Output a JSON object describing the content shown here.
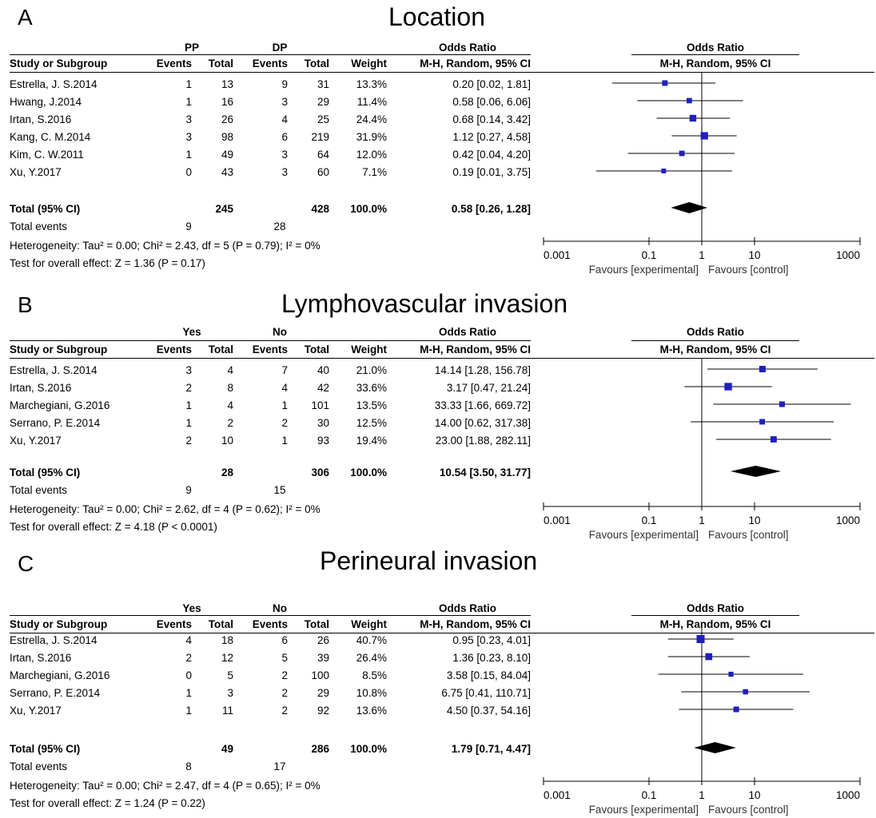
{
  "chart_data": [
    {
      "type": "forest",
      "panel_letter": "A",
      "title": "Location",
      "group1_label": "PP",
      "group2_label": "DP",
      "columns": {
        "study": "Study or Subgroup",
        "events": "Events",
        "total": "Total",
        "weight": "Weight",
        "or_head1": "Odds Ratio",
        "or_head2": "M-H, Random, 95% CI"
      },
      "studies": [
        {
          "name": "Estrella, J. S.2014",
          "e1": "1",
          "n1": "13",
          "e2": "9",
          "n2": "31",
          "weight": "13.3%",
          "ci_text": "0.20 [0.02, 1.81]",
          "or": 0.2,
          "lo": 0.02,
          "hi": 1.81,
          "w": 13.3
        },
        {
          "name": "Hwang, J.2014",
          "e1": "1",
          "n1": "16",
          "e2": "3",
          "n2": "29",
          "weight": "11.4%",
          "ci_text": "0.58 [0.06, 6.06]",
          "or": 0.58,
          "lo": 0.06,
          "hi": 6.06,
          "w": 11.4
        },
        {
          "name": "Irtan, S.2016",
          "e1": "3",
          "n1": "26",
          "e2": "4",
          "n2": "25",
          "weight": "24.4%",
          "ci_text": "0.68 [0.14, 3.42]",
          "or": 0.68,
          "lo": 0.14,
          "hi": 3.42,
          "w": 24.4
        },
        {
          "name": "Kang, C. M.2014",
          "e1": "3",
          "n1": "98",
          "e2": "6",
          "n2": "219",
          "weight": "31.9%",
          "ci_text": "1.12 [0.27, 4.58]",
          "or": 1.12,
          "lo": 0.27,
          "hi": 4.58,
          "w": 31.9
        },
        {
          "name": "Kim, C. W.2011",
          "e1": "1",
          "n1": "49",
          "e2": "3",
          "n2": "64",
          "weight": "12.0%",
          "ci_text": "0.42 [0.04, 4.20]",
          "or": 0.42,
          "lo": 0.04,
          "hi": 4.2,
          "w": 12.0
        },
        {
          "name": "Xu, Y.2017",
          "e1": "0",
          "n1": "43",
          "e2": "3",
          "n2": "60",
          "weight": "7.1%",
          "ci_text": "0.19 [0.01, 3.75]",
          "or": 0.19,
          "lo": 0.01,
          "hi": 3.75,
          "w": 7.1
        }
      ],
      "total": {
        "label": "Total (95% CI)",
        "n1": "245",
        "n2": "428",
        "weight": "100.0%",
        "ci_text": "0.58 [0.26, 1.28]",
        "or": 0.58,
        "lo": 0.26,
        "hi": 1.28
      },
      "total_events": {
        "label": "Total events",
        "e1": "9",
        "e2": "28"
      },
      "heterogeneity": "Heterogeneity: Tau² = 0.00; Chi² = 2.43, df = 5 (P = 0.79); I² = 0%",
      "overall_effect": "Test for overall effect: Z = 1.36 (P = 0.17)",
      "axis": {
        "ticks": [
          "0.001",
          "0.1",
          "1",
          "10",
          "1000"
        ],
        "tick_values": [
          0.001,
          0.1,
          1,
          10,
          1000
        ],
        "scale": "log",
        "xlim": [
          0.001,
          1000
        ],
        "fav_left": "Favours [experimental]",
        "fav_right": "Favours [control]"
      }
    },
    {
      "type": "forest",
      "panel_letter": "B",
      "title": "Lymphovascular invasion",
      "group1_label": "Yes",
      "group2_label": "No",
      "columns": {
        "study": "Study or Subgroup",
        "events": "Events",
        "total": "Total",
        "weight": "Weight",
        "or_head1": "Odds Ratio",
        "or_head2": "M-H, Random, 95% CI"
      },
      "studies": [
        {
          "name": "Estrella, J. S.2014",
          "e1": "3",
          "n1": "4",
          "e2": "7",
          "n2": "40",
          "weight": "21.0%",
          "ci_text": "14.14 [1.28, 156.78]",
          "or": 14.14,
          "lo": 1.28,
          "hi": 156.78,
          "w": 21.0
        },
        {
          "name": "Irtan, S.2016",
          "e1": "2",
          "n1": "8",
          "e2": "4",
          "n2": "42",
          "weight": "33.6%",
          "ci_text": "3.17 [0.47, 21.24]",
          "or": 3.17,
          "lo": 0.47,
          "hi": 21.24,
          "w": 33.6
        },
        {
          "name": "Marchegiani, G.2016",
          "e1": "1",
          "n1": "4",
          "e2": "1",
          "n2": "101",
          "weight": "13.5%",
          "ci_text": "33.33 [1.66, 669.72]",
          "or": 33.33,
          "lo": 1.66,
          "hi": 669.72,
          "w": 13.5
        },
        {
          "name": "Serrano, P. E.2014",
          "e1": "1",
          "n1": "2",
          "e2": "2",
          "n2": "30",
          "weight": "12.5%",
          "ci_text": "14.00 [0.62, 317.38]",
          "or": 14.0,
          "lo": 0.62,
          "hi": 317.38,
          "w": 12.5
        },
        {
          "name": "Xu, Y.2017",
          "e1": "2",
          "n1": "10",
          "e2": "1",
          "n2": "93",
          "weight": "19.4%",
          "ci_text": "23.00 [1.88, 282.11]",
          "or": 23.0,
          "lo": 1.88,
          "hi": 282.11,
          "w": 19.4
        }
      ],
      "total": {
        "label": "Total (95% CI)",
        "n1": "28",
        "n2": "306",
        "weight": "100.0%",
        "ci_text": "10.54 [3.50, 31.77]",
        "or": 10.54,
        "lo": 3.5,
        "hi": 31.77
      },
      "total_events": {
        "label": "Total events",
        "e1": "9",
        "e2": "15"
      },
      "heterogeneity": "Heterogeneity: Tau² = 0.00; Chi² = 2.62, df = 4 (P = 0.62); I² = 0%",
      "overall_effect": "Test for overall effect: Z = 4.18 (P < 0.0001)",
      "axis": {
        "ticks": [
          "0.001",
          "0.1",
          "1",
          "10",
          "1000"
        ],
        "tick_values": [
          0.001,
          0.1,
          1,
          10,
          1000
        ],
        "scale": "log",
        "xlim": [
          0.001,
          1000
        ],
        "fav_left": "Favours [experimental]",
        "fav_right": "Favours [control]"
      }
    },
    {
      "type": "forest",
      "panel_letter": "C",
      "title": "Perineural invasion",
      "group1_label": "Yes",
      "group2_label": "No",
      "columns": {
        "study": "Study or Subgroup",
        "events": "Events",
        "total": "Total",
        "weight": "Weight",
        "or_head1": "Odds Ratio",
        "or_head2": "M-H, Random, 95% CI"
      },
      "studies": [
        {
          "name": "Estrella, J. S.2014",
          "e1": "4",
          "n1": "18",
          "e2": "6",
          "n2": "26",
          "weight": "40.7%",
          "ci_text": "0.95 [0.23, 4.01]",
          "or": 0.95,
          "lo": 0.23,
          "hi": 4.01,
          "w": 40.7
        },
        {
          "name": "Irtan, S.2016",
          "e1": "2",
          "n1": "12",
          "e2": "5",
          "n2": "39",
          "weight": "26.4%",
          "ci_text": "1.36 [0.23, 8.10]",
          "or": 1.36,
          "lo": 0.23,
          "hi": 8.1,
          "w": 26.4
        },
        {
          "name": "Marchegiani, G.2016",
          "e1": "0",
          "n1": "5",
          "e2": "2",
          "n2": "100",
          "weight": "8.5%",
          "ci_text": "3.58 [0.15, 84.04]",
          "or": 3.58,
          "lo": 0.15,
          "hi": 84.04,
          "w": 8.5
        },
        {
          "name": "Serrano, P. E.2014",
          "e1": "1",
          "n1": "3",
          "e2": "2",
          "n2": "29",
          "weight": "10.8%",
          "ci_text": "6.75 [0.41, 110.71]",
          "or": 6.75,
          "lo": 0.41,
          "hi": 110.71,
          "w": 10.8
        },
        {
          "name": "Xu, Y.2017",
          "e1": "1",
          "n1": "11",
          "e2": "2",
          "n2": "92",
          "weight": "13.6%",
          "ci_text": "4.50 [0.37, 54.16]",
          "or": 4.5,
          "lo": 0.37,
          "hi": 54.16,
          "w": 13.6
        }
      ],
      "total": {
        "label": "Total (95% CI)",
        "n1": "49",
        "n2": "286",
        "weight": "100.0%",
        "ci_text": "1.79 [0.71, 4.47]",
        "or": 1.79,
        "lo": 0.71,
        "hi": 4.47
      },
      "total_events": {
        "label": "Total events",
        "e1": "8",
        "e2": "17"
      },
      "heterogeneity": "Heterogeneity: Tau² = 0.00; Chi² = 2.47, df = 4 (P = 0.65); I² = 0%",
      "overall_effect": "Test for overall effect: Z = 1.24 (P = 0.22)",
      "axis": {
        "ticks": [
          "0.001",
          "0.1",
          "1",
          "10",
          "1000"
        ],
        "tick_values": [
          0.001,
          0.1,
          1,
          10,
          1000
        ],
        "scale": "log",
        "xlim": [
          0.001,
          1000
        ],
        "fav_left": "Favours [experimental]",
        "fav_right": "Favours [control]"
      }
    }
  ],
  "colors": {
    "marker": "#1f1fbf",
    "diamond": "#000000",
    "line": "#000000"
  }
}
